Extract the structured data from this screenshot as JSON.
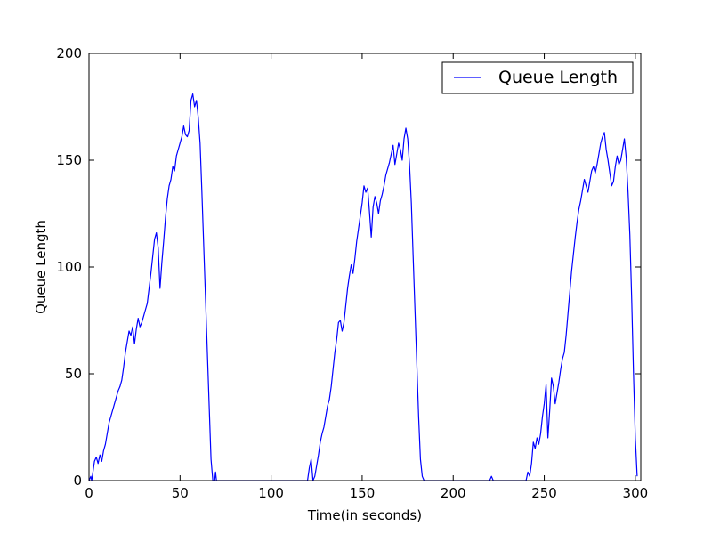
{
  "chart_data": {
    "type": "line",
    "title": "",
    "xlabel": "Time(in seconds)",
    "ylabel": "Queue Length",
    "xlim": [
      0,
      303
    ],
    "ylim": [
      0,
      200
    ],
    "xticks": [
      0,
      50,
      100,
      150,
      200,
      250,
      300
    ],
    "yticks": [
      0,
      50,
      100,
      150,
      200
    ],
    "grid": false,
    "legend_position": "top-right",
    "series": [
      {
        "name": "Queue Length",
        "color": "#0000ff",
        "points": [
          [
            0,
            0
          ],
          [
            1,
            2
          ],
          [
            1.5,
            0
          ],
          [
            2,
            3
          ],
          [
            3,
            9
          ],
          [
            4,
            11
          ],
          [
            5,
            8
          ],
          [
            6,
            12
          ],
          [
            7,
            9
          ],
          [
            8,
            14
          ],
          [
            9,
            17
          ],
          [
            10,
            22
          ],
          [
            11,
            27
          ],
          [
            12,
            30
          ],
          [
            13,
            33
          ],
          [
            14,
            36
          ],
          [
            15,
            39
          ],
          [
            16,
            42
          ],
          [
            17,
            44
          ],
          [
            18,
            47
          ],
          [
            19,
            53
          ],
          [
            20,
            60
          ],
          [
            21,
            65
          ],
          [
            22,
            70
          ],
          [
            23,
            68
          ],
          [
            24,
            72
          ],
          [
            25,
            64
          ],
          [
            26,
            71
          ],
          [
            27,
            76
          ],
          [
            28,
            72
          ],
          [
            29,
            74
          ],
          [
            30,
            77
          ],
          [
            31,
            80
          ],
          [
            32,
            83
          ],
          [
            33,
            90
          ],
          [
            34,
            97
          ],
          [
            35,
            105
          ],
          [
            36,
            113
          ],
          [
            37,
            116
          ],
          [
            38,
            109
          ],
          [
            39,
            90
          ],
          [
            40,
            102
          ],
          [
            41,
            112
          ],
          [
            42,
            123
          ],
          [
            43,
            132
          ],
          [
            44,
            138
          ],
          [
            45,
            141
          ],
          [
            46,
            147
          ],
          [
            47,
            145
          ],
          [
            48,
            152
          ],
          [
            49,
            155
          ],
          [
            50,
            158
          ],
          [
            51,
            161
          ],
          [
            52,
            166
          ],
          [
            53,
            162
          ],
          [
            54,
            161
          ],
          [
            55,
            164
          ],
          [
            56,
            178
          ],
          [
            57,
            181
          ],
          [
            58,
            175
          ],
          [
            59,
            178
          ],
          [
            60,
            170
          ],
          [
            61,
            158
          ],
          [
            62,
            135
          ],
          [
            63,
            110
          ],
          [
            64,
            85
          ],
          [
            65,
            60
          ],
          [
            66,
            35
          ],
          [
            67,
            10
          ],
          [
            68,
            0
          ],
          [
            69,
            0
          ],
          [
            69.5,
            4
          ],
          [
            70,
            0
          ],
          [
            120,
            0
          ],
          [
            121,
            6
          ],
          [
            122,
            10
          ],
          [
            123,
            0
          ],
          [
            124,
            2
          ],
          [
            125,
            7
          ],
          [
            126,
            12
          ],
          [
            127,
            18
          ],
          [
            128,
            22
          ],
          [
            129,
            25
          ],
          [
            130,
            30
          ],
          [
            131,
            35
          ],
          [
            132,
            38
          ],
          [
            133,
            44
          ],
          [
            134,
            52
          ],
          [
            135,
            60
          ],
          [
            136,
            66
          ],
          [
            137,
            74
          ],
          [
            138,
            75
          ],
          [
            139,
            70
          ],
          [
            140,
            74
          ],
          [
            141,
            82
          ],
          [
            142,
            90
          ],
          [
            143,
            96
          ],
          [
            144,
            101
          ],
          [
            145,
            97
          ],
          [
            146,
            104
          ],
          [
            147,
            112
          ],
          [
            148,
            118
          ],
          [
            149,
            124
          ],
          [
            150,
            130
          ],
          [
            151,
            138
          ],
          [
            152,
            135
          ],
          [
            153,
            137
          ],
          [
            154,
            126
          ],
          [
            155,
            114
          ],
          [
            156,
            128
          ],
          [
            157,
            133
          ],
          [
            158,
            130
          ],
          [
            159,
            125
          ],
          [
            160,
            131
          ],
          [
            161,
            134
          ],
          [
            162,
            138
          ],
          [
            163,
            143
          ],
          [
            164,
            146
          ],
          [
            165,
            149
          ],
          [
            166,
            153
          ],
          [
            167,
            157
          ],
          [
            168,
            148
          ],
          [
            169,
            153
          ],
          [
            170,
            158
          ],
          [
            171,
            155
          ],
          [
            172,
            150
          ],
          [
            173,
            160
          ],
          [
            174,
            165
          ],
          [
            175,
            160
          ],
          [
            176,
            148
          ],
          [
            177,
            130
          ],
          [
            178,
            105
          ],
          [
            179,
            80
          ],
          [
            180,
            55
          ],
          [
            181,
            30
          ],
          [
            182,
            10
          ],
          [
            183,
            2
          ],
          [
            184,
            0
          ],
          [
            220,
            0
          ],
          [
            221,
            2
          ],
          [
            222,
            0
          ],
          [
            240,
            0
          ],
          [
            241,
            4
          ],
          [
            242,
            2
          ],
          [
            243,
            8
          ],
          [
            244,
            18
          ],
          [
            245,
            15
          ],
          [
            246,
            20
          ],
          [
            247,
            17
          ],
          [
            248,
            22
          ],
          [
            249,
            30
          ],
          [
            250,
            36
          ],
          [
            251,
            45
          ],
          [
            252,
            20
          ],
          [
            253,
            33
          ],
          [
            254,
            48
          ],
          [
            255,
            44
          ],
          [
            256,
            36
          ],
          [
            257,
            41
          ],
          [
            258,
            46
          ],
          [
            259,
            52
          ],
          [
            260,
            57
          ],
          [
            261,
            60
          ],
          [
            262,
            68
          ],
          [
            263,
            78
          ],
          [
            264,
            88
          ],
          [
            265,
            98
          ],
          [
            266,
            106
          ],
          [
            267,
            114
          ],
          [
            268,
            121
          ],
          [
            269,
            127
          ],
          [
            270,
            131
          ],
          [
            271,
            136
          ],
          [
            272,
            141
          ],
          [
            273,
            138
          ],
          [
            274,
            135
          ],
          [
            275,
            140
          ],
          [
            276,
            145
          ],
          [
            277,
            147
          ],
          [
            278,
            144
          ],
          [
            279,
            148
          ],
          [
            280,
            153
          ],
          [
            281,
            158
          ],
          [
            282,
            161
          ],
          [
            283,
            163
          ],
          [
            284,
            155
          ],
          [
            285,
            150
          ],
          [
            286,
            144
          ],
          [
            287,
            138
          ],
          [
            288,
            140
          ],
          [
            289,
            147
          ],
          [
            290,
            152
          ],
          [
            291,
            148
          ],
          [
            292,
            150
          ],
          [
            293,
            155
          ],
          [
            294,
            160
          ],
          [
            295,
            151
          ],
          [
            296,
            135
          ],
          [
            297,
            115
          ],
          [
            298,
            85
          ],
          [
            299,
            50
          ],
          [
            300,
            20
          ],
          [
            301,
            2
          ]
        ]
      }
    ]
  }
}
